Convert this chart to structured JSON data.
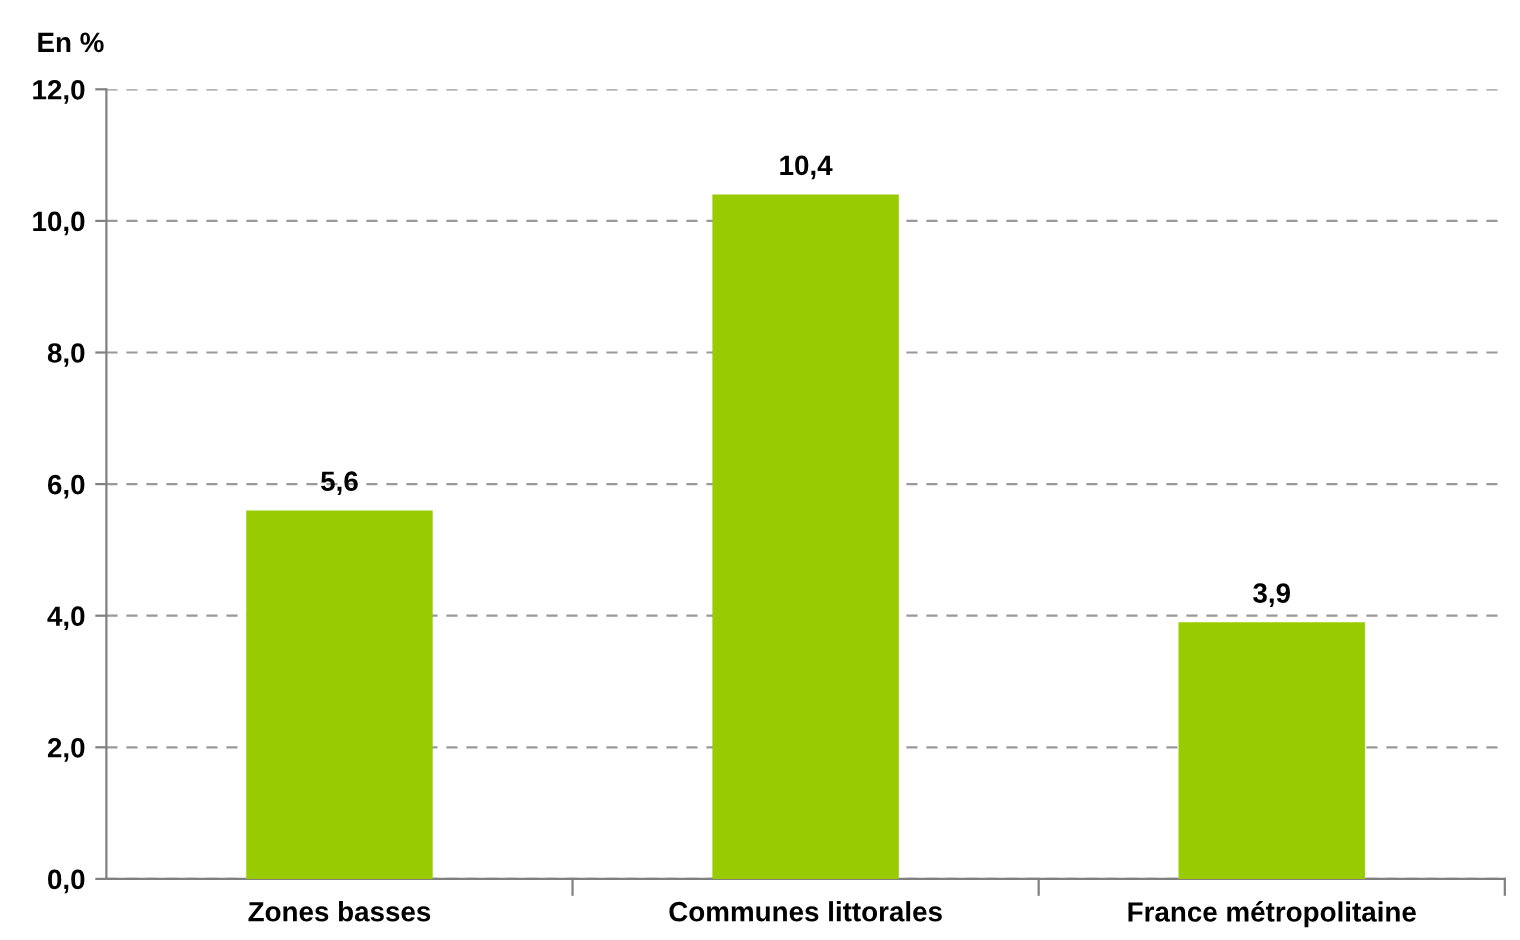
{
  "chart_data": {
    "type": "bar",
    "ylabel": "En %",
    "categories": [
      "Zones basses",
      "Communes littorales",
      "France métropolitaine"
    ],
    "values": [
      5.6,
      10.4,
      3.9
    ],
    "value_labels": [
      "5,6",
      "10,4",
      "3,9"
    ],
    "color": "#99cc00",
    "ylim": [
      0,
      12
    ],
    "yticks": [
      {
        "value": 0,
        "label": "0,0"
      },
      {
        "value": 2,
        "label": "2,0"
      },
      {
        "value": 4,
        "label": "4,0"
      },
      {
        "value": 6,
        "label": "6,0"
      },
      {
        "value": 8,
        "label": "8,0"
      },
      {
        "value": 10,
        "label": "10,0"
      },
      {
        "value": 12,
        "label": "12,0"
      }
    ],
    "grid": "y",
    "legend": false
  }
}
